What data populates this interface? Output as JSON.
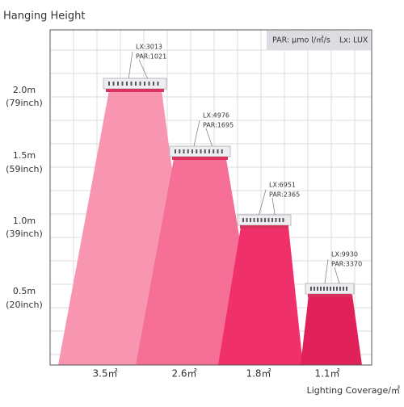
{
  "title": "Hanging Height",
  "legend": {
    "par": "PAR: μmo l/㎡/s",
    "lx": "Lx: LUX"
  },
  "heights": [
    {
      "m": "2.0m",
      "inch": "(79inch)"
    },
    {
      "m": "1.5m",
      "inch": "(59inch)"
    },
    {
      "m": "1.0m",
      "inch": "(39inch)"
    },
    {
      "m": "0.5m",
      "inch": "(20inch)"
    }
  ],
  "lamps": [
    {
      "lx": "LX:3013",
      "par": "PAR:1021",
      "coverage": "3.5㎡"
    },
    {
      "lx": "LX:4976",
      "par": "PAR:1695",
      "coverage": "2.6㎡"
    },
    {
      "lx": "LX:6951",
      "par": "PAR:2365",
      "coverage": "1.8㎡"
    },
    {
      "lx": "LX:9930",
      "par": "PAR:3370",
      "coverage": "1.1㎡"
    }
  ],
  "x_axis_title": "Lighting Coverage/㎡"
}
